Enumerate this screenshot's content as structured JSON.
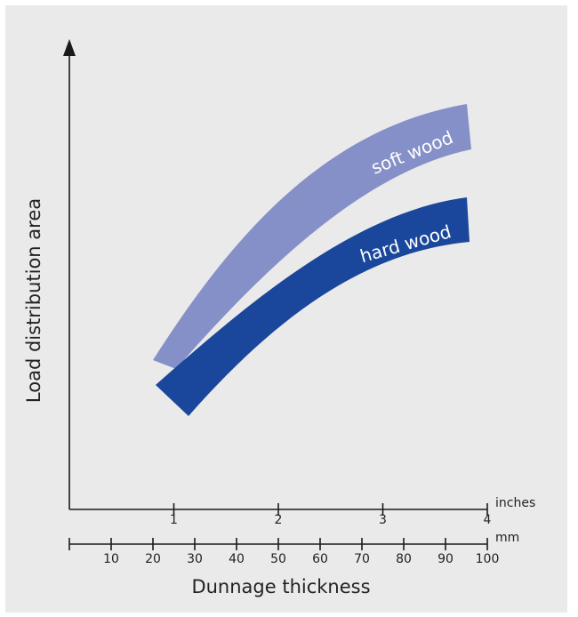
{
  "chart_data": {
    "type": "area",
    "title": "",
    "xlabel": "Dunnage thickness",
    "ylabel": "Load distribution area",
    "x_axis_inches": {
      "unit_label": "inches",
      "ticks": [
        "1",
        "2",
        "3",
        "4"
      ],
      "range": [
        0,
        4
      ]
    },
    "x_axis_mm": {
      "unit_label": "mm",
      "ticks": [
        "10",
        "20",
        "30",
        "40",
        "50",
        "60",
        "70",
        "80",
        "90",
        "100"
      ],
      "range": [
        0,
        100
      ]
    },
    "y_axis": {
      "ticks": [],
      "values_shown": false
    },
    "grid": false,
    "legend": "none",
    "series": [
      {
        "name": "soft wood",
        "color": "#8690c8",
        "band_x_range_inches": [
          0.85,
          3.85
        ]
      },
      {
        "name": "hard wood",
        "color": "#1a479c",
        "band_x_range_inches": [
          0.85,
          3.85
        ]
      }
    ]
  }
}
